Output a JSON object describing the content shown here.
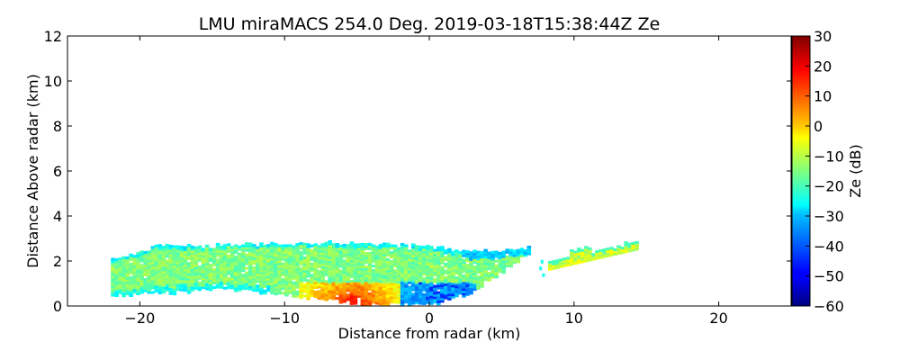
{
  "chart_data": {
    "type": "heatmap",
    "title": "LMU miraMACS 254.0 Deg. 2019-03-18T15:38:44Z  Ze",
    "xlabel": "Distance from radar (km)",
    "ylabel": "Distance Above radar  (km)",
    "xlim": [
      -25,
      25
    ],
    "ylim": [
      0,
      12
    ],
    "xticks": [
      -20,
      -10,
      0,
      10,
      20
    ],
    "xtick_labels": [
      "−20",
      "−10",
      "0",
      "10",
      "20"
    ],
    "yticks": [
      0,
      2,
      4,
      6,
      8,
      10,
      12
    ],
    "ytick_labels": [
      "0",
      "2",
      "4",
      "6",
      "8",
      "10",
      "12"
    ],
    "colorbar": {
      "label": "Ze (dB)",
      "range": [
        -60,
        30
      ],
      "colormap": "jet",
      "ticks": [
        30,
        20,
        10,
        0,
        -10,
        -20,
        -30,
        -40,
        -50,
        -60
      ],
      "tick_labels": [
        "30",
        "20",
        "10",
        "0",
        "−10",
        "−20",
        "−30",
        "−40",
        "−50",
        "−60"
      ]
    },
    "regions": [
      {
        "name": "main-echo",
        "x_range": [
          -22,
          6.8
        ],
        "top_km": [
          [
            -22,
            2.0
          ],
          [
            -19,
            2.65
          ],
          [
            -15,
            2.65
          ],
          [
            -11,
            2.75
          ],
          [
            -5,
            2.75
          ],
          [
            0,
            2.6
          ],
          [
            2,
            2.4
          ],
          [
            5,
            2.45
          ],
          [
            6.8,
            2.6
          ]
        ],
        "bottom_km": [
          [
            -22,
            0.4
          ],
          [
            -14,
            0.7
          ],
          [
            -8,
            0.3
          ],
          [
            -4,
            0.0
          ],
          [
            0,
            0.0
          ],
          [
            3,
            0.6
          ],
          [
            5,
            1.5
          ],
          [
            6.8,
            2.3
          ]
        ],
        "typical_ze_db": -15
      },
      {
        "name": "strong-core",
        "x_range": [
          -9,
          -2
        ],
        "height_km": [
          0,
          1.0
        ],
        "peak_ze_db": 20
      },
      {
        "name": "edge-echo-low-reflectivity",
        "x_range": [
          -2,
          3
        ],
        "height_km": [
          0,
          1.0
        ],
        "typical_ze_db": -35
      },
      {
        "name": "right-segment",
        "x_range": [
          8.2,
          14.3
        ],
        "height_km": [
          1.6,
          2.9
        ],
        "typical_ze_db": -8
      }
    ]
  }
}
